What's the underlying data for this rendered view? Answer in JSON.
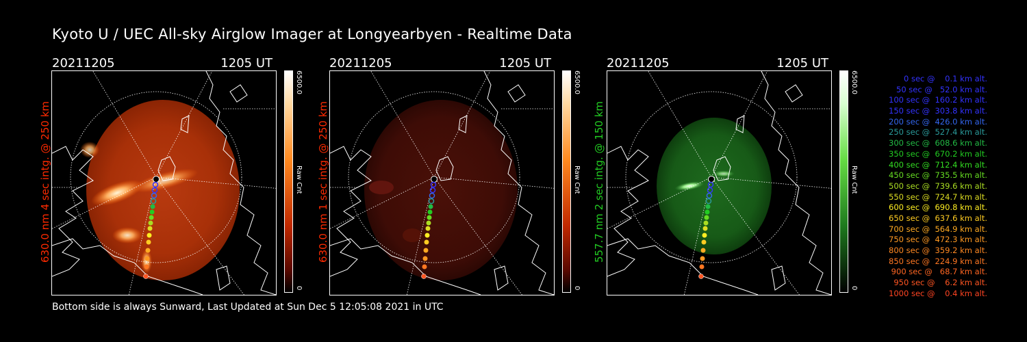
{
  "title": "Kyoto U / UEC All-sky Airglow Imager at Longyearbyen - Realtime Data",
  "panels": [
    {
      "date": "20211205",
      "time": "1205 UT",
      "vertical_label": "630.0 nm  4 sec intg. @ 250 km",
      "label_color": "#ff2a00",
      "cbar_max": "6500.0",
      "cbar_min": "0",
      "cbar_unit": "Raw Cnt"
    },
    {
      "date": "20211205",
      "time": "1205 UT",
      "vertical_label": "630.0 nm  1 sec intg. @ 250 km",
      "label_color": "#ff2a00",
      "cbar_max": "6500.0",
      "cbar_min": "0",
      "cbar_unit": "Raw Cnt"
    },
    {
      "date": "20211205",
      "time": "1205 UT",
      "vertical_label": "557.7 nm  2 sec intg. @ 150 km",
      "label_color": "#22cc22",
      "cbar_max": "6500.0",
      "cbar_min": "0",
      "cbar_unit": "Raw Cnt"
    }
  ],
  "legend": [
    {
      "text": "   0 sec @    0.1 km alt.",
      "color": "#3333ff"
    },
    {
      "text": "  50 sec @   52.0 km alt.",
      "color": "#3333ff"
    },
    {
      "text": " 100 sec @  160.2 km alt.",
      "color": "#3333ff"
    },
    {
      "text": " 150 sec @  303.8 km alt.",
      "color": "#3333ff"
    },
    {
      "text": " 200 sec @  426.0 km alt.",
      "color": "#3366ee"
    },
    {
      "text": " 250 sec @  527.4 km alt.",
      "color": "#2a9a9a"
    },
    {
      "text": " 300 sec @  608.6 km alt.",
      "color": "#22bb44"
    },
    {
      "text": " 350 sec @  670.2 km alt.",
      "color": "#22cc22"
    },
    {
      "text": " 400 sec @  712.4 km alt.",
      "color": "#33dd22"
    },
    {
      "text": " 450 sec @  735.5 km alt.",
      "color": "#66dd22"
    },
    {
      "text": " 500 sec @  739.6 km alt.",
      "color": "#aadd22"
    },
    {
      "text": " 550 sec @  724.7 km alt.",
      "color": "#dddd22"
    },
    {
      "text": " 600 sec @  690.8 km alt.",
      "color": "#ffee22"
    },
    {
      "text": " 650 sec @  637.6 km alt.",
      "color": "#ffcc22"
    },
    {
      "text": " 700 sec @  564.9 km alt.",
      "color": "#ffaa22"
    },
    {
      "text": " 750 sec @  472.3 km alt.",
      "color": "#ff9922"
    },
    {
      "text": " 800 sec @  359.2 km alt.",
      "color": "#ff8822"
    },
    {
      "text": " 850 sec @  224.9 km alt.",
      "color": "#ff7722"
    },
    {
      "text": " 900 sec @   68.7 km alt.",
      "color": "#ff6622"
    },
    {
      "text": " 950 sec @    6.2 km alt.",
      "color": "#ff5522"
    },
    {
      "text": "1000 sec @    0.4 km alt.",
      "color": "#ff4422"
    }
  ],
  "footer": "Bottom side is always Sunward, Last Updated at Sun Dec  5 12:05:08 2021 in UTC"
}
